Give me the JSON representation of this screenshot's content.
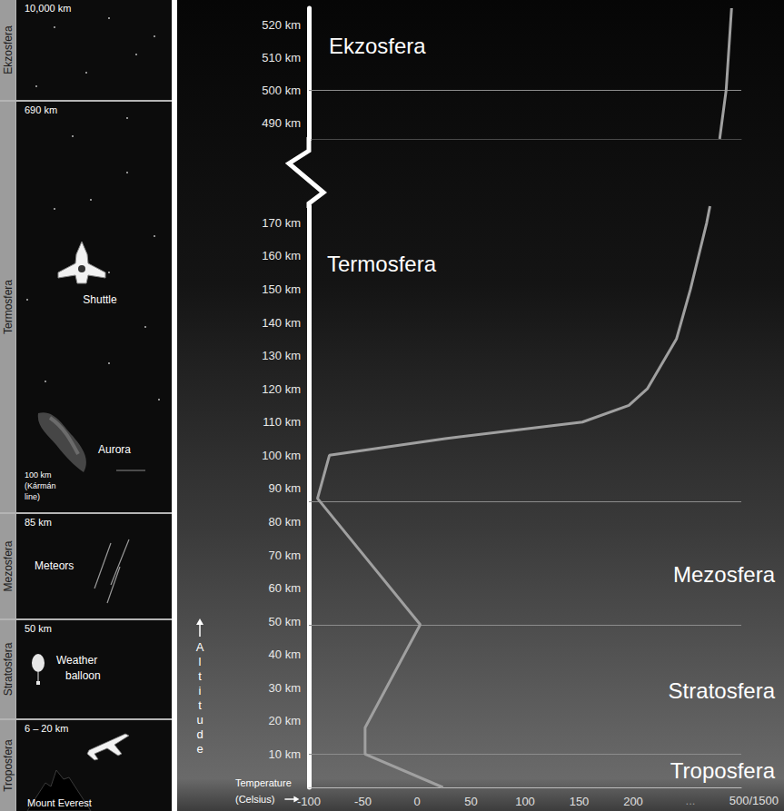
{
  "chart_data": [
    {
      "type": "line",
      "x": [
        280,
        282,
        286,
        288,
        290,
        291
      ],
      "values": [
        485,
        490,
        500,
        510,
        520,
        525
      ],
      "xlim": [
        -100,
        300
      ],
      "ylim": [
        485,
        525
      ],
      "yticks": [
        {
          "value": 490,
          "label": "490 km"
        },
        {
          "value": 500,
          "label": "500 km"
        },
        {
          "value": 510,
          "label": "510 km"
        },
        {
          "value": 520,
          "label": "520 km"
        }
      ],
      "tick_labels": "y",
      "grid": false,
      "color": "#a0a0a0",
      "boundaries": [
        500
      ],
      "annotations": [
        "Ekzosfera"
      ]
    },
    {
      "type": "line",
      "x": [
        24,
        -48,
        -48,
        3,
        -92,
        -81,
        26,
        153,
        196,
        213,
        240,
        253,
        268,
        271
      ],
      "values": [
        0,
        10,
        18,
        49,
        87,
        100,
        105,
        110,
        115,
        120,
        135,
        150,
        170,
        175
      ],
      "xlim": [
        -100,
        300
      ],
      "ylim": [
        0,
        175
      ],
      "xticks": [
        -100,
        -50,
        0,
        50,
        100,
        150,
        200
      ],
      "yticks": [
        {
          "value": 10,
          "label": "10 km"
        },
        {
          "value": 20,
          "label": "20 km"
        },
        {
          "value": 30,
          "label": "30 km"
        },
        {
          "value": 40,
          "label": "40 km"
        },
        {
          "value": 50,
          "label": "50 km"
        },
        {
          "value": 60,
          "label": "60 km"
        },
        {
          "value": 70,
          "label": "70 km"
        },
        {
          "value": 80,
          "label": "80 km"
        },
        {
          "value": 90,
          "label": "90 km"
        },
        {
          "value": 100,
          "label": "100 km"
        },
        {
          "value": 110,
          "label": "110 km"
        },
        {
          "value": 120,
          "label": "120 km"
        },
        {
          "value": 130,
          "label": "130 km"
        },
        {
          "value": 140,
          "label": "140 km"
        },
        {
          "value": 150,
          "label": "150 km"
        },
        {
          "value": 160,
          "label": "160 km"
        },
        {
          "value": 170,
          "label": "170 km"
        }
      ],
      "x_label": "Temperature (Celsius)",
      "y_label": "Altitude",
      "x_end_labels": [
        "...",
        "500/1500"
      ],
      "grid": false,
      "color": "#a0a0a0",
      "boundaries": [
        10,
        49,
        86
      ],
      "annotations": [
        "Termosfera",
        "Mezosfera",
        "Stratosfera",
        "Troposfera"
      ]
    }
  ],
  "side_panel": {
    "sections": [
      {
        "name": "Ekzosfera",
        "altitude": "10,000 km",
        "items": []
      },
      {
        "name": "Termosfera",
        "altitude": "690 km",
        "items": [
          [
            "Shuttle"
          ],
          [
            "Aurora"
          ],
          [
            "100 km",
            "(Kármán",
            "line)"
          ]
        ]
      },
      {
        "name": "Mezosfera",
        "altitude": "85 km",
        "items": [
          [
            "Meteors"
          ]
        ]
      },
      {
        "name": "Stratosfera",
        "altitude": "50 km",
        "items": [
          [
            "Weather",
            "balloon"
          ]
        ]
      },
      {
        "name": "Troposfera",
        "altitude": "6 – 20 km",
        "items": [
          [
            "Mount Everest"
          ]
        ]
      }
    ]
  }
}
